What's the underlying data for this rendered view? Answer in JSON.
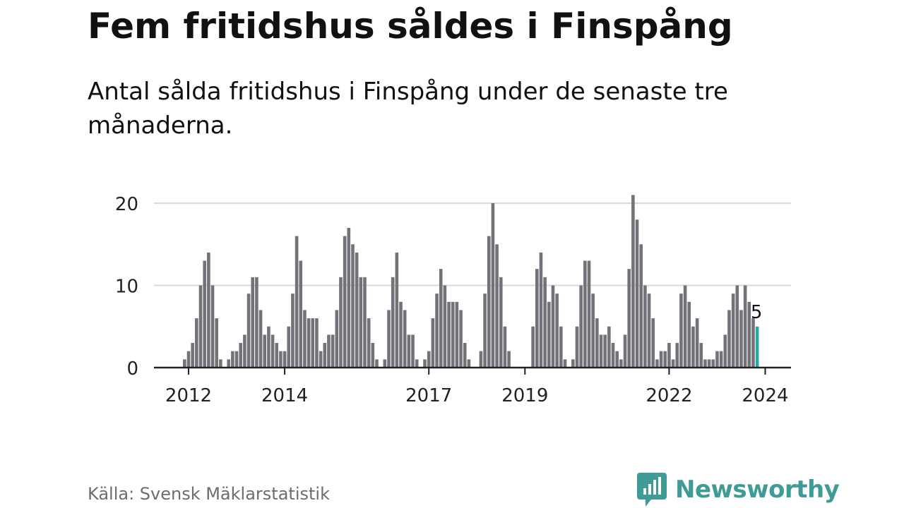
{
  "header": {
    "title": "Fem fritidshus såldes i Finspång",
    "subtitle": "Antal sålda fritidshus i Finspång under de senaste tre månaderna."
  },
  "footer": {
    "source": "Källa: Svensk Mäklarstatistik",
    "brand": "Newsworthy",
    "brand_icon": "newsworthy-logo-icon"
  },
  "colors": {
    "bar": "#737278",
    "highlight": "#2ba7a3",
    "grid": "#d9d9d9",
    "axis": "#222222",
    "brand": "#3e9b95"
  },
  "chart_data": {
    "type": "bar",
    "title": "Fem fritidshus såldes i Finspång",
    "subtitle": "Antal sålda fritidshus i Finspång under de senaste tre månaderna.",
    "xlabel": "",
    "ylabel": "",
    "ylim": [
      0,
      21
    ],
    "yticks": [
      0,
      10,
      20
    ],
    "grid": true,
    "x_start": "2011-10",
    "x_frequency": "monthly",
    "xticks": [
      "2012",
      "2014",
      "2017",
      "2019",
      "2022",
      "2024"
    ],
    "values": [
      0,
      0,
      1,
      2,
      3,
      6,
      10,
      13,
      14,
      10,
      6,
      1,
      0,
      1,
      2,
      2,
      3,
      4,
      9,
      11,
      11,
      7,
      4,
      5,
      4,
      3,
      2,
      2,
      5,
      9,
      16,
      13,
      7,
      6,
      6,
      6,
      2,
      3,
      4,
      4,
      7,
      11,
      16,
      17,
      15,
      14,
      11,
      11,
      6,
      3,
      1,
      0,
      1,
      7,
      11,
      14,
      8,
      7,
      4,
      4,
      1,
      0,
      1,
      2,
      6,
      9,
      12,
      10,
      8,
      8,
      8,
      7,
      3,
      1,
      0,
      0,
      2,
      9,
      16,
      20,
      15,
      11,
      5,
      2,
      0,
      0,
      0,
      0,
      0,
      5,
      12,
      14,
      11,
      8,
      10,
      9,
      5,
      1,
      0,
      1,
      5,
      10,
      13,
      13,
      9,
      6,
      4,
      4,
      5,
      3,
      2,
      1,
      4,
      12,
      21,
      18,
      15,
      10,
      9,
      6,
      1,
      2,
      2,
      3,
      1,
      3,
      9,
      10,
      8,
      5,
      6,
      3,
      1,
      1,
      1,
      2,
      2,
      4,
      7,
      9,
      10,
      7,
      10,
      8,
      6,
      5
    ],
    "annotation": {
      "label": "5",
      "value": 5,
      "index": "last"
    }
  }
}
